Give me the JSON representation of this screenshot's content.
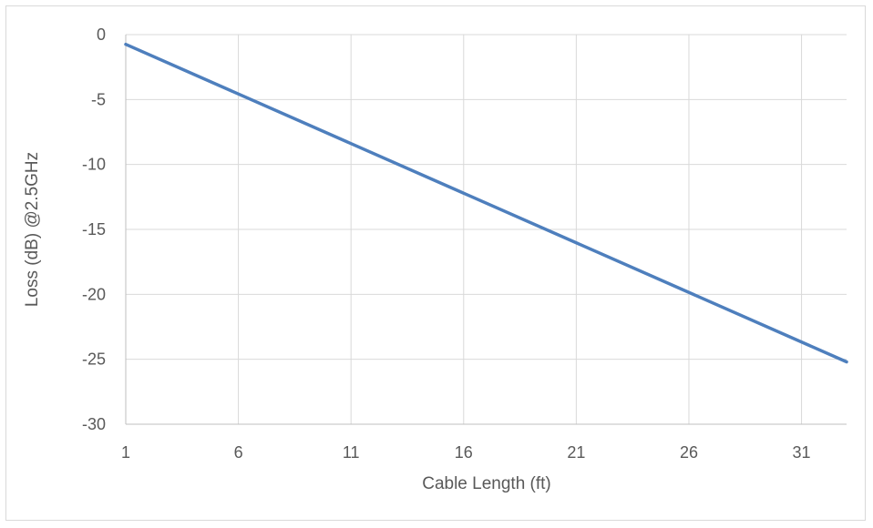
{
  "chart_data": {
    "type": "line",
    "title": "",
    "xlabel": "Cable Length (ft)",
    "ylabel": "Loss (dB) @2.5GHz",
    "xlim": [
      1,
      33
    ],
    "ylim": [
      -30,
      0
    ],
    "xticks": [
      "1",
      "6",
      "11",
      "16",
      "21",
      "26",
      "31"
    ],
    "yticks": [
      "0",
      "-5",
      "-10",
      "-15",
      "-20",
      "-25",
      "-30"
    ],
    "grid": true,
    "legend": "none",
    "series": [
      {
        "color": "#4e7fbd",
        "x": [
          1,
          33
        ],
        "y": [
          -0.75,
          -25.2
        ]
      }
    ]
  }
}
